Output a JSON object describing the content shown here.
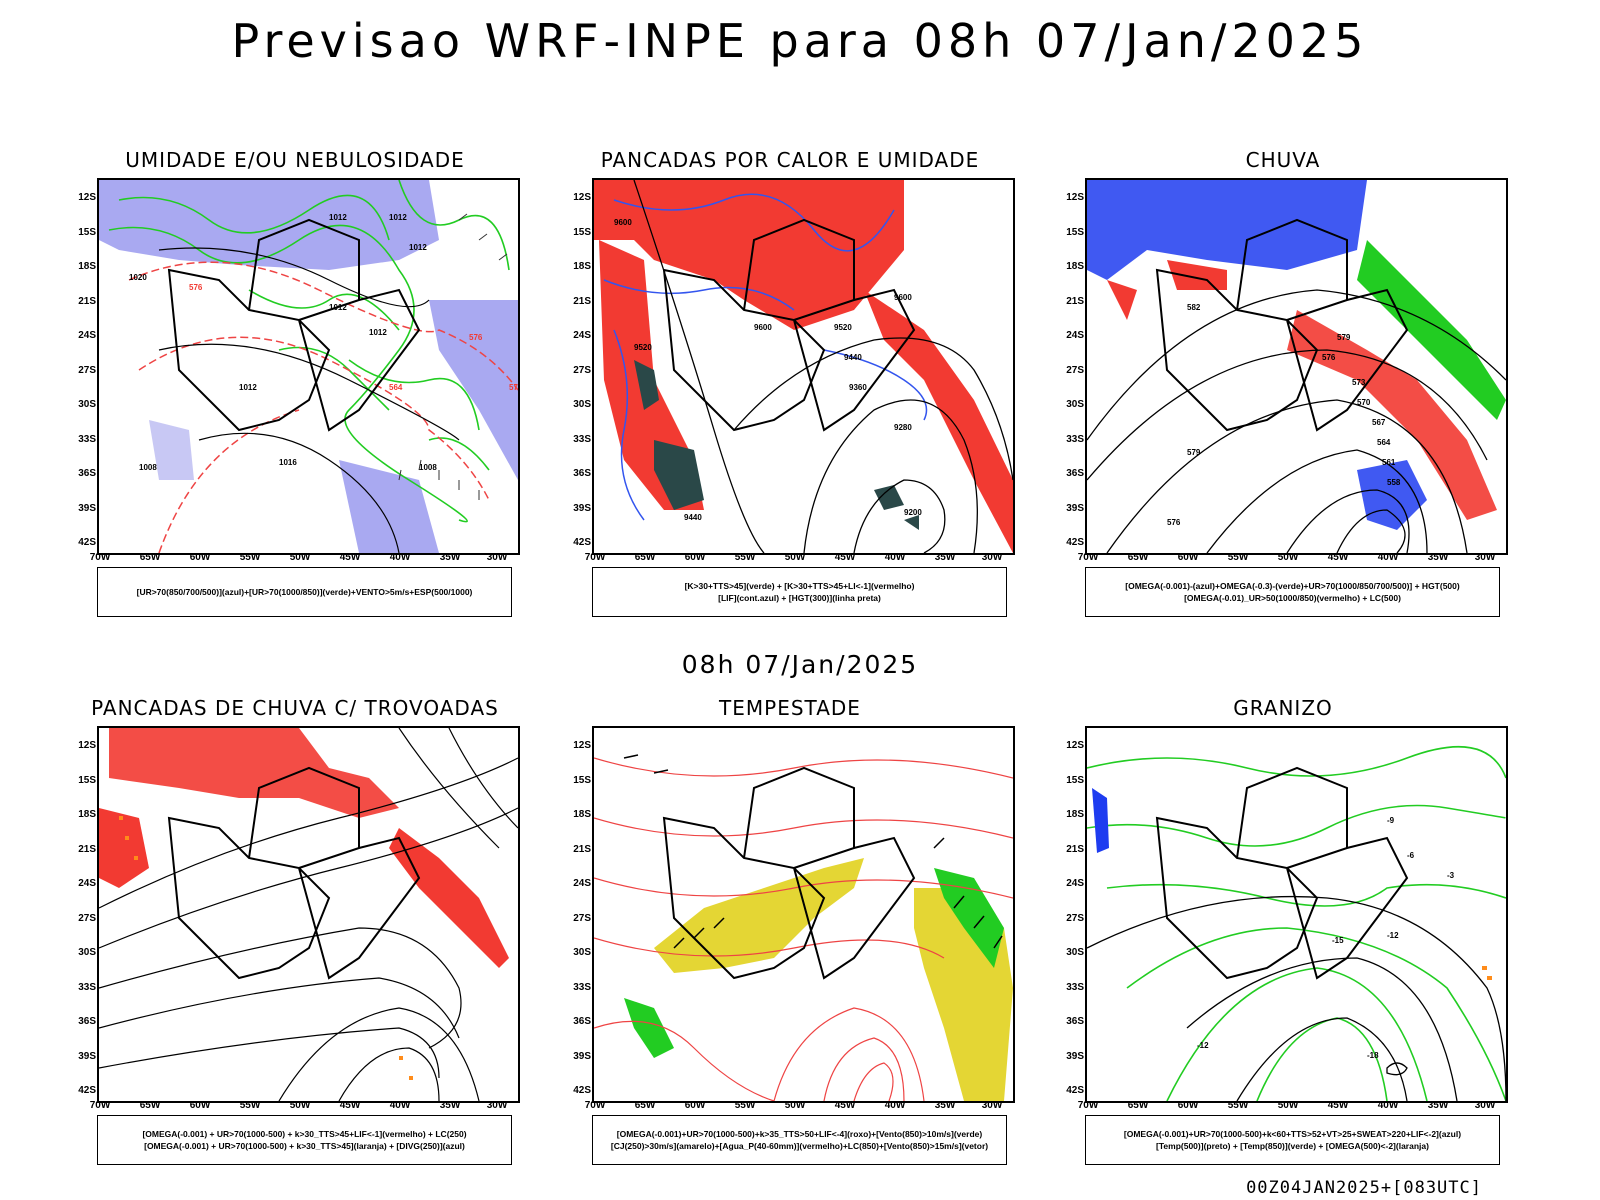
{
  "title": "Previsao WRF-INPE  para 08h 07/Jan/2025",
  "subtitle": "08h 07/Jan/2025",
  "footer": "00Z04JAN2025+[083UTC]",
  "lat_labels": [
    "12S",
    "15S",
    "18S",
    "21S",
    "24S",
    "27S",
    "30S",
    "33S",
    "36S",
    "39S",
    "42S"
  ],
  "lon_labels": [
    "70W",
    "65W",
    "60W",
    "55W",
    "50W",
    "45W",
    "40W",
    "35W",
    "30W"
  ],
  "colors": {
    "blue_area": "#9a9aee",
    "blue_dot": "#1e3cf0",
    "green": "#22cc22",
    "red": "#f23a32",
    "red_line": "#ee4444",
    "yellow": "#e4d634",
    "dark_teal": "#2a4848",
    "orange": "#ff8c1a",
    "black": "#000000"
  },
  "panels": [
    {
      "title": "UMIDADE E/OU NEBULOSIDADE",
      "legend": [
        "[UR>70(850/700/500)](azul)+[UR>70(1000/850)](verde)+VENTO>5m/s+ESP(500/1000)"
      ],
      "contour_labels": [
        "1012",
        "1012",
        "1012",
        "1012",
        "1012",
        "1012",
        "1008",
        "1016",
        "576",
        "576",
        "570",
        "564",
        "1008",
        "1020"
      ]
    },
    {
      "title": "PANCADAS POR CALOR E UMIDADE",
      "legend": [
        "[K>30+TTS>45](verde) + [K>30+TTS>45+LI<-1](vermelho)",
        "[LIF](cont.azul) + [HGT(300)](linha preta)"
      ],
      "contour_labels": [
        "9600",
        "9600",
        "9520",
        "9440",
        "9360",
        "9280",
        "9200",
        "9600",
        "9520",
        "9440"
      ]
    },
    {
      "title": "CHUVA",
      "legend": [
        "[OMEGA(-0.001)-(azul)+OMEGA(-0.3)-(verde)+UR>70(1000/850/700/500)] + HGT(500)",
        "[OMEGA(-0.01)_UR>50(1000/850)(vermelho) + LC(500)"
      ],
      "contour_labels": [
        "582",
        "579",
        "576",
        "573",
        "570",
        "567",
        "564",
        "561",
        "558",
        "579",
        "576"
      ]
    },
    {
      "title": "PANCADAS DE CHUVA C/ TROVOADAS",
      "legend": [
        "[OMEGA(-0.001) + UR>70(1000-500) + k>30_TTS>45+LIF<-1](vermelho) + LC(250)",
        "[OMEGA(-0.001) + UR>70(1000-500) + k>30_TTS>45](laranja) + [DIVG(250)](azul)"
      ],
      "contour_labels": []
    },
    {
      "title": "TEMPESTADE",
      "legend": [
        "[OMEGA(-0.001)+UR>70(1000-500)+k>35_TTS>50+LIF<-4](roxo)+[Vento(850)>10m/s](verde)",
        "[CJ(250)>30m/s](amarelo)+[Agua_P(40-60mm)](vermelho)+LC(850)+[Vento(850)>15m/s](vetor)"
      ],
      "contour_labels": []
    },
    {
      "title": "GRANIZO",
      "legend": [
        "[OMEGA(-0.001)+UR>70(1000-500)+k<60+TTS>52+VT>25+SWEAT>220+LIF<-2](azul)",
        "[Temp(500)](preto) + [Temp(850)](verde) + [OMEGA(500)<-2](laranja)"
      ],
      "contour_labels": [
        "-12",
        "-15",
        "-12",
        "-18",
        "-9",
        "-6",
        "-3"
      ]
    }
  ]
}
